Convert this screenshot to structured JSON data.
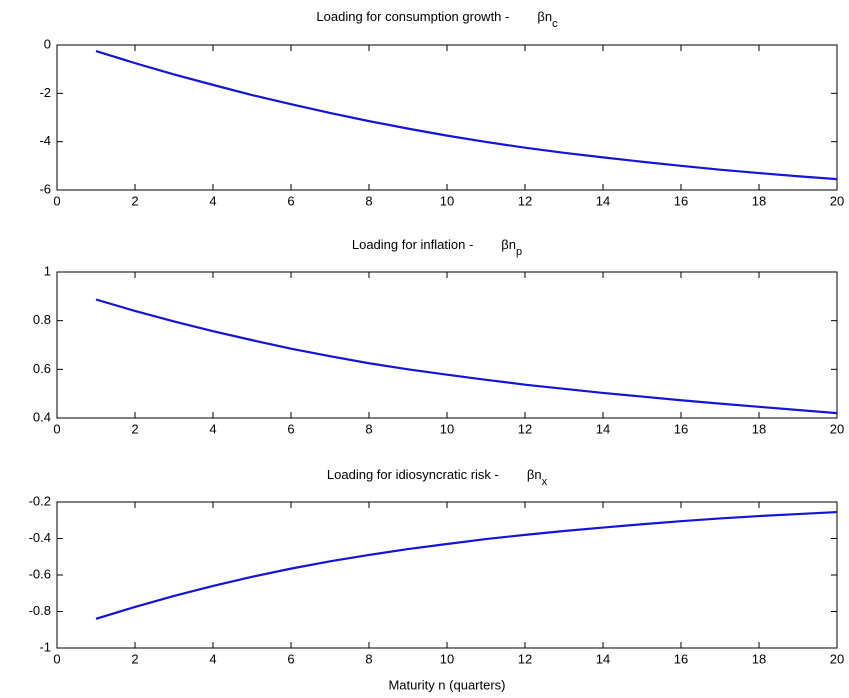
{
  "chart_data": [
    {
      "type": "line",
      "title": "Loading for consumption growth -",
      "title_symbol": "βn",
      "title_subscript": "c",
      "x": [
        1,
        2,
        3,
        4,
        5,
        6,
        7,
        8,
        9,
        10,
        11,
        12,
        13,
        14,
        15,
        16,
        17,
        18,
        19,
        20
      ],
      "values": [
        -0.25,
        -0.75,
        -1.22,
        -1.65,
        -2.07,
        -2.45,
        -2.81,
        -3.15,
        -3.46,
        -3.75,
        -4.01,
        -4.25,
        -4.46,
        -4.65,
        -4.83,
        -5.0,
        -5.16,
        -5.3,
        -5.43,
        -5.55
      ],
      "color": "#1414d4",
      "xlim": [
        0,
        20
      ],
      "xticks": [
        0,
        2,
        4,
        6,
        8,
        10,
        12,
        14,
        16,
        18,
        20
      ],
      "ylim": [
        -6,
        0
      ],
      "yticks": [
        -6,
        -4,
        -2,
        0
      ],
      "grid": false
    },
    {
      "type": "line",
      "title": "Loading for inflation -",
      "title_symbol": "βn",
      "title_subscript": "p",
      "x": [
        1,
        2,
        3,
        4,
        5,
        6,
        7,
        8,
        9,
        10,
        11,
        12,
        13,
        14,
        15,
        16,
        17,
        18,
        19,
        20
      ],
      "values": [
        0.887,
        0.84,
        0.797,
        0.757,
        0.72,
        0.685,
        0.654,
        0.625,
        0.6,
        0.578,
        0.557,
        0.537,
        0.52,
        0.503,
        0.488,
        0.473,
        0.459,
        0.446,
        0.433,
        0.42
      ],
      "color": "#1414d4",
      "xlim": [
        0,
        20
      ],
      "xticks": [
        0,
        2,
        4,
        6,
        8,
        10,
        12,
        14,
        16,
        18,
        20
      ],
      "ylim": [
        0.4,
        1
      ],
      "yticks": [
        0.4,
        0.6,
        0.8,
        1
      ],
      "grid": false
    },
    {
      "type": "line",
      "title": "Loading for idiosyncratic risk -",
      "title_symbol": "βn",
      "title_subscript": "x",
      "x_label": "Maturity n (quarters)",
      "x": [
        1,
        2,
        3,
        4,
        5,
        6,
        7,
        8,
        9,
        10,
        11,
        12,
        13,
        14,
        15,
        16,
        17,
        18,
        19,
        20
      ],
      "values": [
        -0.84,
        -0.775,
        -0.715,
        -0.66,
        -0.61,
        -0.565,
        -0.525,
        -0.49,
        -0.458,
        -0.43,
        -0.403,
        -0.38,
        -0.359,
        -0.34,
        -0.322,
        -0.305,
        -0.29,
        -0.277,
        -0.266,
        -0.255
      ],
      "color": "#1414d4",
      "xlim": [
        0,
        20
      ],
      "xticks": [
        0,
        2,
        4,
        6,
        8,
        10,
        12,
        14,
        16,
        18,
        20
      ],
      "ylim": [
        -1,
        -0.2
      ],
      "yticks": [
        -1,
        -0.8,
        -0.6,
        -0.4,
        -0.2
      ],
      "grid": false
    }
  ]
}
